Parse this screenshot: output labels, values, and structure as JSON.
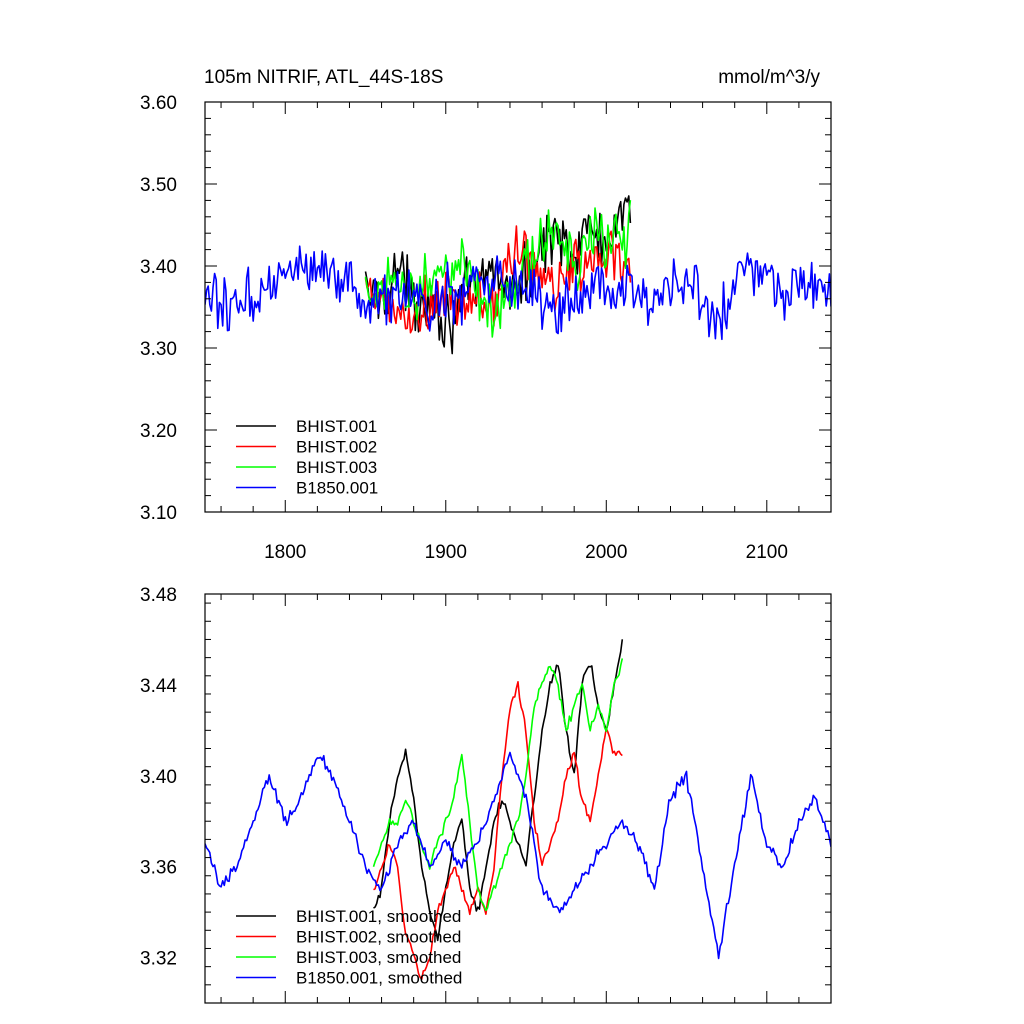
{
  "chart_data": [
    {
      "type": "line",
      "title_left": "105m NITRIF, ATL_44S-18S",
      "title_right": "mmol/m^3/y",
      "xlabel": "",
      "ylabel": "",
      "xlim": [
        1750,
        2140
      ],
      "ylim": [
        3.1,
        3.6
      ],
      "xticks": [
        1800,
        1900,
        2000,
        2100
      ],
      "xtick_labels": [
        "1800",
        "1900",
        "2000",
        "2100"
      ],
      "yticks": [
        3.1,
        3.2,
        3.3,
        3.4,
        3.5,
        3.6
      ],
      "ytick_labels": [
        "3.10",
        "3.20",
        "3.30",
        "3.40",
        "3.50",
        "3.60"
      ],
      "legend_position": "bottom-left",
      "series": [
        {
          "name": "BHIST.001",
          "color": "#000000",
          "x_start": 1850,
          "x_end": 2015,
          "anchors": [
            [
              1850,
              3.37
            ],
            [
              1860,
              3.36
            ],
            [
              1870,
              3.4
            ],
            [
              1880,
              3.35
            ],
            [
              1890,
              3.37
            ],
            [
              1900,
              3.33
            ],
            [
              1910,
              3.36
            ],
            [
              1920,
              3.37
            ],
            [
              1930,
              3.4
            ],
            [
              1940,
              3.37
            ],
            [
              1950,
              3.38
            ],
            [
              1960,
              3.42
            ],
            [
              1970,
              3.45
            ],
            [
              1980,
              3.41
            ],
            [
              1990,
              3.45
            ],
            [
              2000,
              3.42
            ],
            [
              2010,
              3.45
            ],
            [
              2015,
              3.47
            ]
          ],
          "amplitude": 0.055
        },
        {
          "name": "BHIST.002",
          "color": "#ff0000",
          "x_start": 1850,
          "x_end": 2015,
          "anchors": [
            [
              1850,
              3.36
            ],
            [
              1860,
              3.36
            ],
            [
              1870,
              3.34
            ],
            [
              1880,
              3.33
            ],
            [
              1890,
              3.35
            ],
            [
              1900,
              3.36
            ],
            [
              1910,
              3.35
            ],
            [
              1920,
              3.36
            ],
            [
              1930,
              3.35
            ],
            [
              1940,
              3.41
            ],
            [
              1950,
              3.42
            ],
            [
              1960,
              3.38
            ],
            [
              1970,
              3.37
            ],
            [
              1980,
              3.41
            ],
            [
              1990,
              3.4
            ],
            [
              2000,
              3.42
            ],
            [
              2010,
              3.41
            ],
            [
              2015,
              3.41
            ]
          ],
          "amplitude": 0.055
        },
        {
          "name": "BHIST.003",
          "color": "#00ff00",
          "x_start": 1850,
          "x_end": 2015,
          "anchors": [
            [
              1850,
              3.36
            ],
            [
              1860,
              3.38
            ],
            [
              1870,
              3.39
            ],
            [
              1880,
              3.37
            ],
            [
              1890,
              3.38
            ],
            [
              1900,
              3.4
            ],
            [
              1910,
              3.4
            ],
            [
              1920,
              3.35
            ],
            [
              1930,
              3.35
            ],
            [
              1940,
              3.37
            ],
            [
              1950,
              3.39
            ],
            [
              1960,
              3.43
            ],
            [
              1970,
              3.44
            ],
            [
              1980,
              3.41
            ],
            [
              1990,
              3.43
            ],
            [
              2000,
              3.43
            ],
            [
              2010,
              3.44
            ],
            [
              2015,
              3.45
            ]
          ],
          "amplitude": 0.055
        },
        {
          "name": "B1850.001",
          "color": "#0000ff",
          "x_start": 1750,
          "x_end": 2140,
          "anchors": [
            [
              1750,
              3.36
            ],
            [
              1770,
              3.35
            ],
            [
              1790,
              3.38
            ],
            [
              1810,
              3.4
            ],
            [
              1830,
              3.39
            ],
            [
              1850,
              3.35
            ],
            [
              1870,
              3.37
            ],
            [
              1890,
              3.35
            ],
            [
              1910,
              3.37
            ],
            [
              1930,
              3.38
            ],
            [
              1950,
              3.37
            ],
            [
              1970,
              3.35
            ],
            [
              1990,
              3.37
            ],
            [
              2010,
              3.38
            ],
            [
              2030,
              3.36
            ],
            [
              2050,
              3.38
            ],
            [
              2070,
              3.33
            ],
            [
              2090,
              3.4
            ],
            [
              2110,
              3.36
            ],
            [
              2130,
              3.38
            ],
            [
              2140,
              3.37
            ]
          ],
          "amplitude": 0.05
        }
      ]
    },
    {
      "type": "line",
      "title_left": "",
      "title_right": "",
      "xlabel": "",
      "ylabel": "",
      "xlim": [
        1750,
        2140
      ],
      "ylim": [
        3.3,
        3.48
      ],
      "xticks": [
        1800,
        1900,
        2000,
        2100
      ],
      "xtick_labels": [],
      "yticks": [
        3.32,
        3.36,
        3.4,
        3.44,
        3.48
      ],
      "ytick_labels": [
        "3.32",
        "3.36",
        "3.40",
        "3.44",
        "3.48"
      ],
      "legend_position": "bottom-left",
      "series": [
        {
          "name": "BHIST.001, smoothed",
          "color": "#000000",
          "x_start": 1855,
          "x_end": 2010,
          "anchors": [
            [
              1855,
              3.34
            ],
            [
              1860,
              3.35
            ],
            [
              1865,
              3.38
            ],
            [
              1870,
              3.4
            ],
            [
              1875,
              3.41
            ],
            [
              1880,
              3.39
            ],
            [
              1885,
              3.36
            ],
            [
              1890,
              3.34
            ],
            [
              1895,
              3.33
            ],
            [
              1900,
              3.35
            ],
            [
              1905,
              3.37
            ],
            [
              1910,
              3.38
            ],
            [
              1915,
              3.35
            ],
            [
              1920,
              3.34
            ],
            [
              1925,
              3.36
            ],
            [
              1930,
              3.38
            ],
            [
              1935,
              3.39
            ],
            [
              1940,
              3.38
            ],
            [
              1945,
              3.37
            ],
            [
              1950,
              3.36
            ],
            [
              1955,
              3.39
            ],
            [
              1960,
              3.42
            ],
            [
              1965,
              3.44
            ],
            [
              1970,
              3.45
            ],
            [
              1975,
              3.42
            ],
            [
              1980,
              3.4
            ],
            [
              1985,
              3.44
            ],
            [
              1990,
              3.45
            ],
            [
              1995,
              3.43
            ],
            [
              2000,
              3.42
            ],
            [
              2005,
              3.44
            ],
            [
              2010,
              3.46
            ]
          ],
          "amplitude": 0.003
        },
        {
          "name": "BHIST.002, smoothed",
          "color": "#ff0000",
          "x_start": 1855,
          "x_end": 2010,
          "anchors": [
            [
              1855,
              3.35
            ],
            [
              1860,
              3.36
            ],
            [
              1865,
              3.37
            ],
            [
              1870,
              3.36
            ],
            [
              1875,
              3.33
            ],
            [
              1880,
              3.32
            ],
            [
              1885,
              3.31
            ],
            [
              1890,
              3.32
            ],
            [
              1895,
              3.34
            ],
            [
              1900,
              3.35
            ],
            [
              1905,
              3.36
            ],
            [
              1910,
              3.35
            ],
            [
              1915,
              3.34
            ],
            [
              1920,
              3.35
            ],
            [
              1925,
              3.34
            ],
            [
              1930,
              3.36
            ],
            [
              1935,
              3.4
            ],
            [
              1940,
              3.43
            ],
            [
              1945,
              3.44
            ],
            [
              1950,
              3.42
            ],
            [
              1955,
              3.38
            ],
            [
              1960,
              3.36
            ],
            [
              1965,
              3.37
            ],
            [
              1970,
              3.38
            ],
            [
              1975,
              3.4
            ],
            [
              1980,
              3.41
            ],
            [
              1985,
              3.39
            ],
            [
              1990,
              3.38
            ],
            [
              1995,
              3.4
            ],
            [
              2000,
              3.42
            ],
            [
              2005,
              3.41
            ],
            [
              2010,
              3.41
            ]
          ],
          "amplitude": 0.003
        },
        {
          "name": "BHIST.003, smoothed",
          "color": "#00ff00",
          "x_start": 1855,
          "x_end": 2010,
          "anchors": [
            [
              1855,
              3.36
            ],
            [
              1860,
              3.37
            ],
            [
              1865,
              3.38
            ],
            [
              1870,
              3.38
            ],
            [
              1875,
              3.39
            ],
            [
              1880,
              3.38
            ],
            [
              1885,
              3.37
            ],
            [
              1890,
              3.36
            ],
            [
              1895,
              3.37
            ],
            [
              1900,
              3.38
            ],
            [
              1905,
              3.39
            ],
            [
              1910,
              3.41
            ],
            [
              1915,
              3.38
            ],
            [
              1920,
              3.35
            ],
            [
              1925,
              3.34
            ],
            [
              1930,
              3.35
            ],
            [
              1935,
              3.36
            ],
            [
              1940,
              3.37
            ],
            [
              1945,
              3.38
            ],
            [
              1950,
              3.4
            ],
            [
              1955,
              3.43
            ],
            [
              1960,
              3.44
            ],
            [
              1965,
              3.45
            ],
            [
              1970,
              3.44
            ],
            [
              1975,
              3.42
            ],
            [
              1980,
              3.43
            ],
            [
              1985,
              3.44
            ],
            [
              1990,
              3.42
            ],
            [
              1995,
              3.43
            ],
            [
              2000,
              3.42
            ],
            [
              2005,
              3.44
            ],
            [
              2010,
              3.45
            ]
          ],
          "amplitude": 0.003
        },
        {
          "name": "B1850.001, smoothed",
          "color": "#0000ff",
          "x_start": 1750,
          "x_end": 2140,
          "anchors": [
            [
              1750,
              3.37
            ],
            [
              1760,
              3.35
            ],
            [
              1770,
              3.36
            ],
            [
              1780,
              3.38
            ],
            [
              1790,
              3.4
            ],
            [
              1800,
              3.38
            ],
            [
              1810,
              3.39
            ],
            [
              1820,
              3.41
            ],
            [
              1830,
              3.4
            ],
            [
              1840,
              3.38
            ],
            [
              1850,
              3.36
            ],
            [
              1860,
              3.35
            ],
            [
              1870,
              3.37
            ],
            [
              1880,
              3.38
            ],
            [
              1890,
              3.36
            ],
            [
              1900,
              3.37
            ],
            [
              1910,
              3.36
            ],
            [
              1920,
              3.37
            ],
            [
              1930,
              3.39
            ],
            [
              1940,
              3.41
            ],
            [
              1950,
              3.39
            ],
            [
              1960,
              3.35
            ],
            [
              1970,
              3.34
            ],
            [
              1980,
              3.35
            ],
            [
              1990,
              3.36
            ],
            [
              2000,
              3.37
            ],
            [
              2010,
              3.38
            ],
            [
              2020,
              3.37
            ],
            [
              2030,
              3.35
            ],
            [
              2040,
              3.39
            ],
            [
              2050,
              3.4
            ],
            [
              2060,
              3.36
            ],
            [
              2070,
              3.32
            ],
            [
              2080,
              3.36
            ],
            [
              2090,
              3.4
            ],
            [
              2100,
              3.37
            ],
            [
              2110,
              3.36
            ],
            [
              2120,
              3.38
            ],
            [
              2130,
              3.39
            ],
            [
              2140,
              3.37
            ]
          ],
          "amplitude": 0.004
        }
      ]
    }
  ]
}
